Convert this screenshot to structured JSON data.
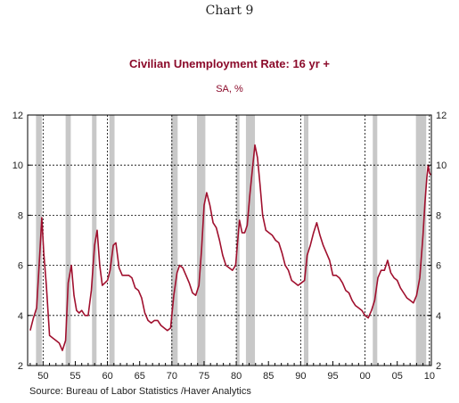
{
  "chart_number": "Chart 9",
  "source": "Source:  Bureau of Labor Statistics /Haver Analytics",
  "chart_data": {
    "type": "line",
    "title": "Civilian Unemployment Rate: 16 yr +",
    "subtitle": "SA, %",
    "xlabel": "",
    "ylabel": "",
    "xlim": [
      1947.6,
      2010.3
    ],
    "ylim": [
      2,
      12
    ],
    "grid": true,
    "x_ticks": [
      {
        "value": 1950,
        "label": "50"
      },
      {
        "value": 1955,
        "label": "55"
      },
      {
        "value": 1960,
        "label": "60"
      },
      {
        "value": 1965,
        "label": "65"
      },
      {
        "value": 1970,
        "label": "70"
      },
      {
        "value": 1975,
        "label": "75"
      },
      {
        "value": 1980,
        "label": "80"
      },
      {
        "value": 1985,
        "label": "85"
      },
      {
        "value": 1990,
        "label": "90"
      },
      {
        "value": 1995,
        "label": "95"
      },
      {
        "value": 2000,
        "label": "00"
      },
      {
        "value": 2005,
        "label": "05"
      },
      {
        "value": 2010,
        "label": "10"
      }
    ],
    "y_ticks": [
      2,
      4,
      6,
      8,
      10,
      12
    ],
    "recession_shading": [
      [
        1948.9,
        1949.8
      ],
      [
        1953.5,
        1954.3
      ],
      [
        1957.6,
        1958.3
      ],
      [
        1960.3,
        1961.1
      ],
      [
        1969.9,
        1970.9
      ],
      [
        1973.9,
        1975.2
      ],
      [
        1980.0,
        1980.5
      ],
      [
        1981.5,
        1982.9
      ],
      [
        1990.5,
        1991.2
      ],
      [
        2001.2,
        2001.9
      ],
      [
        2007.9,
        2009.5
      ]
    ],
    "colors": {
      "line": "#a0102e",
      "recession": "#c8c8c8",
      "title": "#8b0a2a"
    },
    "series": [
      {
        "x": [
          1948.0,
          1948.5,
          1949.0,
          1949.5,
          1949.8,
          1950.1,
          1950.5,
          1951.0,
          1951.5,
          1952.0,
          1952.5,
          1953.0,
          1953.5,
          1953.9,
          1954.4,
          1954.8,
          1955.2,
          1955.6,
          1956.0,
          1956.5,
          1957.0,
          1957.5,
          1958.0,
          1958.4,
          1958.8,
          1959.2,
          1959.6,
          1960.0,
          1960.4,
          1960.9,
          1961.3,
          1961.8,
          1962.3,
          1962.8,
          1963.3,
          1963.8,
          1964.3,
          1964.8,
          1965.3,
          1965.8,
          1966.3,
          1966.8,
          1967.3,
          1967.8,
          1968.3,
          1968.8,
          1969.3,
          1969.8,
          1970.3,
          1970.8,
          1971.2,
          1971.7,
          1972.2,
          1972.7,
          1973.2,
          1973.7,
          1974.2,
          1974.6,
          1975.0,
          1975.4,
          1975.9,
          1976.4,
          1976.9,
          1977.4,
          1977.9,
          1978.4,
          1978.9,
          1979.4,
          1979.9,
          1980.2,
          1980.5,
          1980.9,
          1981.3,
          1981.7,
          1982.1,
          1982.5,
          1982.9,
          1983.3,
          1983.7,
          1984.1,
          1984.6,
          1985.1,
          1985.6,
          1986.1,
          1986.6,
          1987.1,
          1987.6,
          1988.1,
          1988.6,
          1989.1,
          1989.6,
          1990.1,
          1990.6,
          1991.0,
          1991.5,
          1992.0,
          1992.5,
          1993.0,
          1993.5,
          1994.0,
          1994.5,
          1995.0,
          1995.5,
          1996.0,
          1996.5,
          1997.0,
          1997.5,
          1998.0,
          1998.5,
          1999.0,
          1999.5,
          2000.0,
          2000.5,
          2001.0,
          2001.5,
          2002.0,
          2002.5,
          2003.0,
          2003.5,
          2004.0,
          2004.5,
          2005.0,
          2005.5,
          2006.0,
          2006.5,
          2007.0,
          2007.5,
          2008.0,
          2008.5,
          2009.0,
          2009.3,
          2009.6,
          2009.8,
          2010.0,
          2010.2
        ],
        "values": [
          3.4,
          3.9,
          4.3,
          6.5,
          7.9,
          6.5,
          5.2,
          3.2,
          3.1,
          3.0,
          2.9,
          2.6,
          3.0,
          5.3,
          6.0,
          4.8,
          4.2,
          4.1,
          4.2,
          4.0,
          4.0,
          5.0,
          6.8,
          7.4,
          6.0,
          5.2,
          5.3,
          5.4,
          5.8,
          6.8,
          6.9,
          5.9,
          5.6,
          5.6,
          5.6,
          5.5,
          5.1,
          5.0,
          4.7,
          4.1,
          3.8,
          3.7,
          3.8,
          3.8,
          3.6,
          3.5,
          3.4,
          3.5,
          4.8,
          5.7,
          6.0,
          5.9,
          5.6,
          5.3,
          4.9,
          4.8,
          5.2,
          6.6,
          8.4,
          8.9,
          8.4,
          7.7,
          7.5,
          7.0,
          6.4,
          6.0,
          5.9,
          5.8,
          6.0,
          6.9,
          7.8,
          7.3,
          7.3,
          7.6,
          8.8,
          9.8,
          10.8,
          10.3,
          9.2,
          8.0,
          7.4,
          7.3,
          7.2,
          7.0,
          6.9,
          6.5,
          6.0,
          5.8,
          5.4,
          5.3,
          5.2,
          5.3,
          5.4,
          6.4,
          6.8,
          7.3,
          7.7,
          7.2,
          6.8,
          6.5,
          6.2,
          5.6,
          5.6,
          5.5,
          5.3,
          5.0,
          4.9,
          4.6,
          4.4,
          4.3,
          4.2,
          4.0,
          3.9,
          4.2,
          4.6,
          5.5,
          5.8,
          5.8,
          6.2,
          5.7,
          5.5,
          5.4,
          5.1,
          4.9,
          4.7,
          4.6,
          4.5,
          4.8,
          5.5,
          7.2,
          8.5,
          9.5,
          10.0,
          9.7,
          9.6
        ]
      }
    ]
  }
}
